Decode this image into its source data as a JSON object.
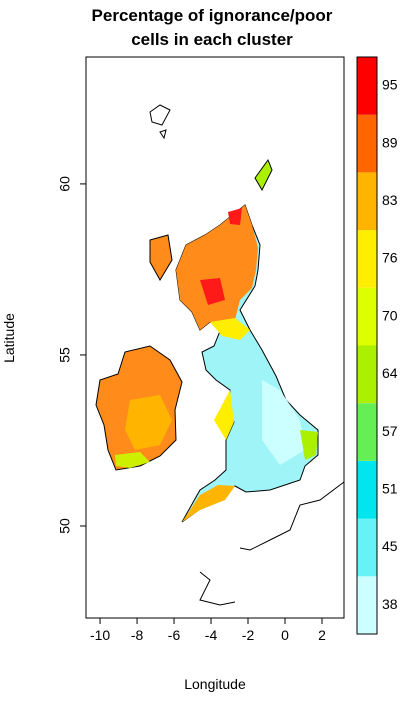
{
  "chart_data": {
    "type": "map",
    "title": [
      "Percentage of ignorance/poor",
      "cells in each cluster"
    ],
    "x_label": "Longitude",
    "y_label": "Latitude",
    "xlim": [
      -10.76,
      3.19
    ],
    "xticks": [
      -10,
      -8,
      -6,
      -4,
      -2,
      0,
      2
    ],
    "ylim": [
      47.31,
      63.71
    ],
    "yticks": [
      50,
      55,
      60
    ],
    "legend": {
      "levels": [
        38,
        45,
        51,
        57,
        64,
        70,
        76,
        83,
        89,
        95
      ],
      "colors": [
        "#ccffff",
        "#66f2f7",
        "#00e5ee",
        "#66ee55",
        "#aaf000",
        "#ddff00",
        "#ffee00",
        "#ffb400",
        "#ff6600",
        "#ff0000"
      ]
    }
  }
}
